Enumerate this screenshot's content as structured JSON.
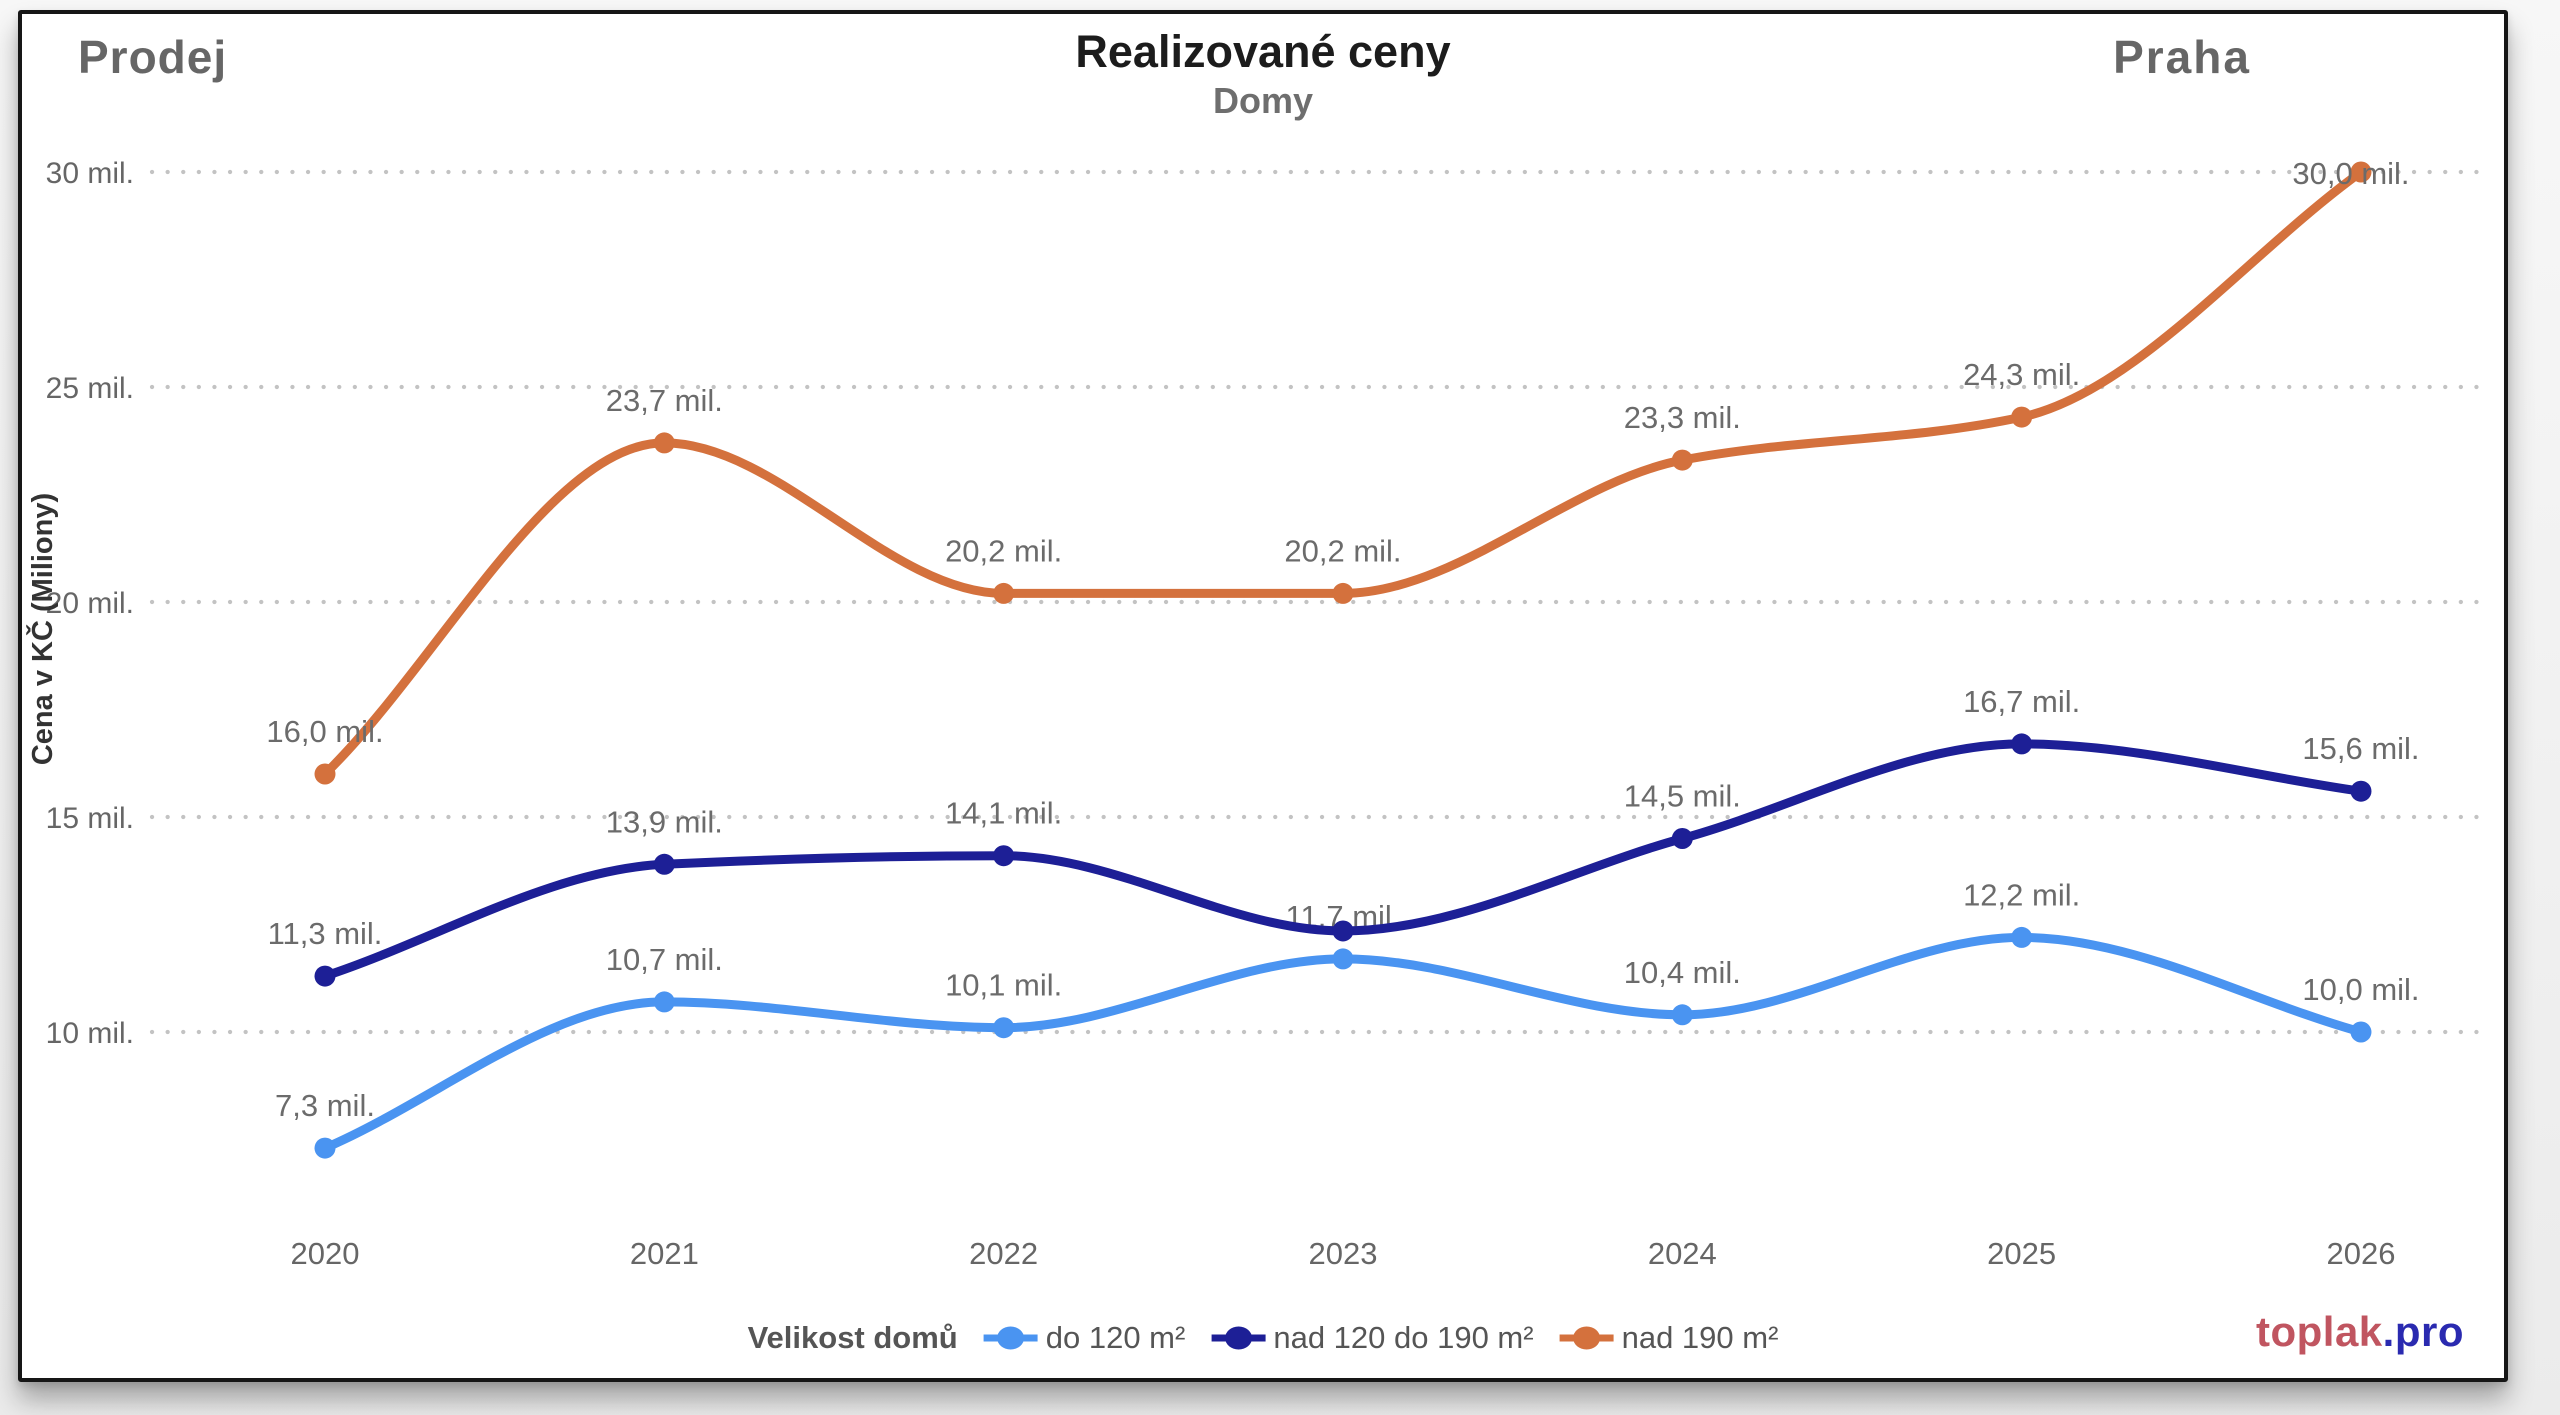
{
  "header": {
    "left": "Prodej",
    "title": "Realizované ceny",
    "subtitle": "Domy",
    "right": "Praha"
  },
  "y_axis": {
    "title": "Cena v KČ (Miliony)",
    "ticks": [
      "30 mil.",
      "25 mil.",
      "20 mil.",
      "15 mil.",
      "10 mil."
    ],
    "tick_values": [
      30,
      25,
      20,
      15,
      10
    ]
  },
  "x_axis": {
    "categories": [
      "2020",
      "2021",
      "2022",
      "2023",
      "2024",
      "2025",
      "2026"
    ]
  },
  "legend": {
    "title": "Velikost domů",
    "items": [
      {
        "label": "do 120 m²",
        "color": "#4a94f1"
      },
      {
        "label": "nad 120 do 190 m²",
        "color": "#1d1f96"
      },
      {
        "label": "nad 190 m²",
        "color": "#d4713d"
      }
    ]
  },
  "footer_logo": {
    "part1": "toplak",
    "part2": ".pro",
    "color1": "#c05560",
    "color2": "#2a2ab0"
  },
  "chart_data": {
    "type": "line",
    "title": "Realizované ceny",
    "subtitle": "Domy",
    "xlabel": "",
    "ylabel": "Cena v KČ (Miliony)",
    "x": [
      2020,
      2021,
      2022,
      2023,
      2024,
      2025,
      2026
    ],
    "categories": [
      "2020",
      "2021",
      "2022",
      "2023",
      "2024",
      "2025",
      "2026"
    ],
    "series": [
      {
        "name": "do 120 m²",
        "color": "#4a94f1",
        "values": [
          7.3,
          10.7,
          10.1,
          11.7,
          10.4,
          12.2,
          10.0
        ],
        "labels": [
          "7,3 mil.",
          "10,7 mil.",
          "10,1 mil.",
          "11,7 mil.",
          "10,4 mil.",
          "12,2 mil.",
          "10,0 mil."
        ]
      },
      {
        "name": "nad 120 do 190 m²",
        "color": "#1d1f96",
        "values": [
          11.3,
          13.9,
          14.1,
          12.35,
          14.5,
          16.7,
          15.6
        ],
        "labels": [
          "11,3 mil.",
          "13,9 mil.",
          "14,1 mil.",
          "",
          "14,5 mil.",
          "16,7 mil.",
          "15,6 mil."
        ]
      },
      {
        "name": "nad 190 m²",
        "color": "#d4713d",
        "values": [
          16.0,
          23.7,
          20.2,
          20.2,
          23.3,
          24.3,
          30.0
        ],
        "labels": [
          "16,0 mil.",
          "23,7 mil.",
          "20,2 mil.",
          "20,2 mil.",
          "23,3 mil.",
          "24,3 mil.",
          "30,0 mil."
        ]
      }
    ],
    "ylim": [
      6.5,
      31
    ],
    "grid": "horizontal-dotted",
    "legend_position": "bottom",
    "line_style": "smoothed-monotone",
    "marker": "filled-circle"
  },
  "style": {
    "grid_color": "#c3c3c3",
    "tick_label_color": "#666666",
    "data_label_color": "#6b6b6b",
    "axis_title_color": "#333333"
  }
}
